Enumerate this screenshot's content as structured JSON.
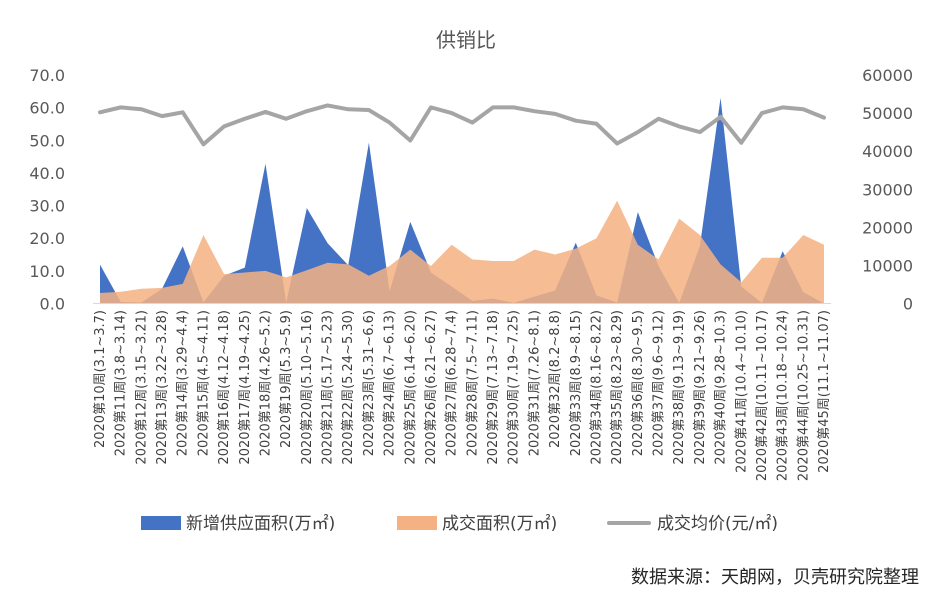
{
  "chart_data": {
    "type": "area",
    "title": "供销比",
    "source": "数据来源：天朗网，贝壳研究院整理",
    "legend_position": "bottom",
    "grid": false,
    "categories": [
      "2020第10周(3.1~3.7)",
      "2020第11周(3.8~3.14)",
      "2020第12周(3.15~3.21)",
      "2020第13周(3.22~3.28)",
      "2020第14周(3.29~4.4)",
      "2020第15周(4.5~4.11)",
      "2020第16周(4.12~4.18)",
      "2020第17周(4.19~4.25)",
      "2020第18周(4.26~5.2)",
      "2020第19周(5.3~5.9)",
      "2020第20周(5.10~5.16)",
      "2020第21周(5.17~5.23)",
      "2020第22周(5.24~5.30)",
      "2020第23周(5.31~6.6)",
      "2020第24周(6.7~6.13)",
      "2020第25周(6.14~6.20)",
      "2020第26周(6.21~6.27)",
      "2020第27周(6.28~7.4)",
      "2020第28周(7.5~7.11)",
      "2020第29周(7.13~7.18)",
      "2020第30周(7.19~7.25)",
      "2020第31周(7.26~8.1)",
      "2020第32周(8.2~8.8)",
      "2020第33周(8.9~8.15)",
      "2020第34周(8.16~8.22)",
      "2020第35周(8.23~8.29)",
      "2020第36周(8.30~9.5)",
      "2020第37周(9.6~9.12)",
      "2020第38周(9.13~9.19)",
      "2020第39周(9.21~9.26)",
      "2020第40周(9.28~10.3)",
      "2020第41周(10.4~10.10)",
      "2020第42周(10.11~10.17)",
      "2020第43周(10.18~10.24)",
      "2020第44周(10.25~10.31)",
      "2020第45周(11.1~11.07)"
    ],
    "left_axis": {
      "ylim": [
        0,
        70
      ],
      "ticks": [
        "0.0",
        "10.0",
        "20.0",
        "30.0",
        "40.0",
        "50.0",
        "60.0",
        "70.0"
      ]
    },
    "right_axis": {
      "ylim": [
        0,
        60000
      ],
      "ticks": [
        "0",
        "10000",
        "20000",
        "30000",
        "40000",
        "50000",
        "60000"
      ]
    },
    "series": [
      {
        "name": "新增供应面积(万㎡)",
        "kind": "area",
        "axis": "left",
        "color": "#4472C4",
        "values": [
          11.9,
          0.5,
          0.3,
          4.5,
          17.5,
          0.4,
          8.5,
          11.0,
          42.8,
          0.3,
          29.2,
          18.5,
          11.7,
          49.3,
          3.8,
          25.0,
          9.5,
          5.2,
          0.8,
          1.5,
          0.2,
          2.1,
          4.0,
          18.6,
          2.5,
          0.3,
          28.0,
          11.5,
          0.2,
          17.6,
          63.0,
          5.2,
          0.2,
          16.0,
          3.5,
          0.0
        ]
      },
      {
        "name": "成交面积(万㎡)",
        "kind": "area",
        "axis": "left",
        "color": "#F4B183",
        "values": [
          3.2,
          3.6,
          4.5,
          4.8,
          6.0,
          21.0,
          9.0,
          9.5,
          10.0,
          8.0,
          10.2,
          12.5,
          12.0,
          8.5,
          11.5,
          16.5,
          11.5,
          18.0,
          13.5,
          13.0,
          13.0,
          16.5,
          15.0,
          16.8,
          20.0,
          31.5,
          18.0,
          13.5,
          26.0,
          21.0,
          12.0,
          6.5,
          14.0,
          14.0,
          21.0,
          18.0
        ]
      },
      {
        "name": "成交均价(元/㎡)",
        "kind": "line",
        "axis": "right",
        "color": "#A5A5A5",
        "values": [
          50200,
          51500,
          51000,
          49200,
          50200,
          41800,
          46500,
          48500,
          50300,
          48500,
          50500,
          52000,
          51000,
          50800,
          47500,
          42800,
          51500,
          50000,
          47500,
          51500,
          51500,
          50500,
          49800,
          48000,
          47200,
          42000,
          45000,
          48500,
          46500,
          45000,
          49000,
          42200,
          50000,
          51500,
          51000,
          48800
        ]
      }
    ]
  }
}
